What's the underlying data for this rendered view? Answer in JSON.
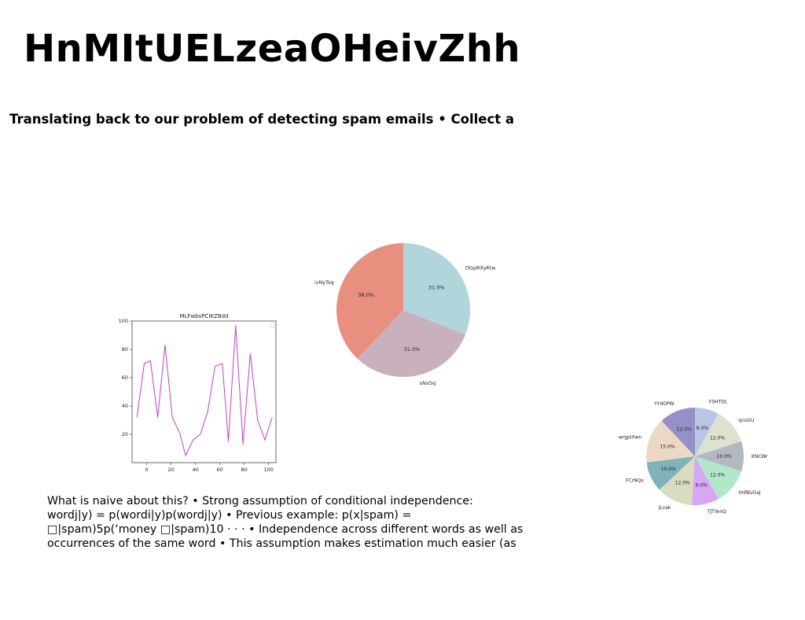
{
  "title": "HnMItUELzeaOHeivZhh",
  "subtitle": "Translating back to our problem of detecting spam emails • Collect a",
  "body_lines": [
    "What is naive about this? • Strong assumption of conditional independence:",
    "wordj|y) = p(wordi|y)p(wordj|y) • Previous example: p(x|spam) =",
    "□|spam)5p(‘money □|spam)10 · · · • Independence across different words as well as",
    "occurrences of the same word • This assumption makes estimation much easier (as"
  ],
  "chart_data": [
    {
      "type": "line",
      "title": "MLFwbsPCIKZBdd",
      "xlabel": "",
      "ylabel": "",
      "xlim": [
        -12,
        106
      ],
      "ylim": [
        0,
        100
      ],
      "xticks": [
        0,
        20,
        40,
        60,
        80,
        100
      ],
      "yticks": [
        20,
        40,
        60,
        80,
        100
      ],
      "legend": "top-right (empty)",
      "grid": false,
      "series": [
        {
          "color": "#c03fc9",
          "x": [
            -8,
            -2,
            3,
            9,
            15,
            21,
            27,
            32,
            38,
            44,
            50,
            56,
            62,
            67,
            73,
            79,
            85,
            91,
            97,
            103
          ],
          "y": [
            32,
            70,
            72,
            32,
            83,
            32,
            21,
            5,
            16,
            20,
            36,
            68,
            70,
            15,
            97,
            13,
            77,
            30,
            16,
            32
          ]
        }
      ]
    },
    {
      "type": "pie",
      "labels": [
        "OGpRXyKtw",
        "sNxSq",
        "XvNyTsq"
      ],
      "values": [
        31.0,
        31.0,
        38.0
      ],
      "value_labels": [
        "31.0%",
        "31.0%",
        "38.0%"
      ],
      "colors": [
        "#b0d6dc",
        "#c9b0bd",
        "#e88f80"
      ]
    },
    {
      "type": "pie",
      "labels": [
        "FSHTDL",
        "qcoGU",
        "KNCWr",
        "hhfBUOaj",
        "TJTYenQ",
        "JLvak",
        "FCrNQx",
        "wrgpIXwn",
        "YYdOPW"
      ],
      "values": [
        8.0,
        12.0,
        10.0,
        12.0,
        9.0,
        12.0,
        10.0,
        15.0,
        12.0
      ],
      "value_labels": [
        "8.0%",
        "12.0%",
        "10.0%",
        "12.0%",
        "9.0%",
        "12.0%",
        "10.0%",
        "15.0%",
        "12.0%"
      ],
      "colors": [
        "#b9c6e3",
        "#dde2d0",
        "#b4b8c2",
        "#b1e8ca",
        "#d7a6f5",
        "#d9dcbf",
        "#7fb2bb",
        "#ecd8c4",
        "#9690c8"
      ]
    }
  ]
}
